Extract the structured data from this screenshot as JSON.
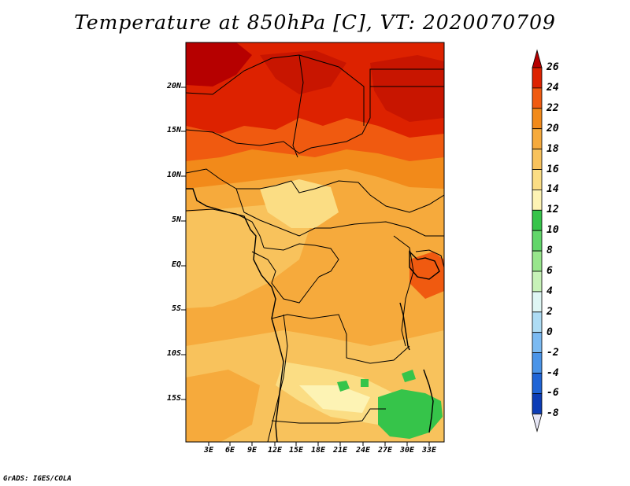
{
  "title": "Temperature at 850hPa [C], VT: 2020070709",
  "footer": "GrADS: IGES/COLA",
  "map": {
    "lat_labels": [
      "20N",
      "15N",
      "10N",
      "5N",
      "EQ",
      "5S",
      "10S",
      "15S"
    ],
    "lon_labels": [
      "3E",
      "6E",
      "9E",
      "12E",
      "15E",
      "18E",
      "21E",
      "24E",
      "27E",
      "30E",
      "33E"
    ]
  },
  "colorbar": {
    "labels": [
      "26",
      "24",
      "22",
      "20",
      "18",
      "16",
      "14",
      "12",
      "10",
      "8",
      "6",
      "4",
      "2",
      "0",
      "-2",
      "-4",
      "-6",
      "-8"
    ],
    "colors": [
      "#b60000",
      "#dd2200",
      "#f05a10",
      "#f28a1a",
      "#f6aa3c",
      "#f8c25c",
      "#fbdd84",
      "#fdf3b4",
      "#36c44a",
      "#62d66a",
      "#98e68c",
      "#c7f2b8",
      "#dff6f4",
      "#aedcf4",
      "#7bbaf2",
      "#4a94e8",
      "#1f64d6",
      "#0b3cb6",
      "#081e7a"
    ]
  }
}
